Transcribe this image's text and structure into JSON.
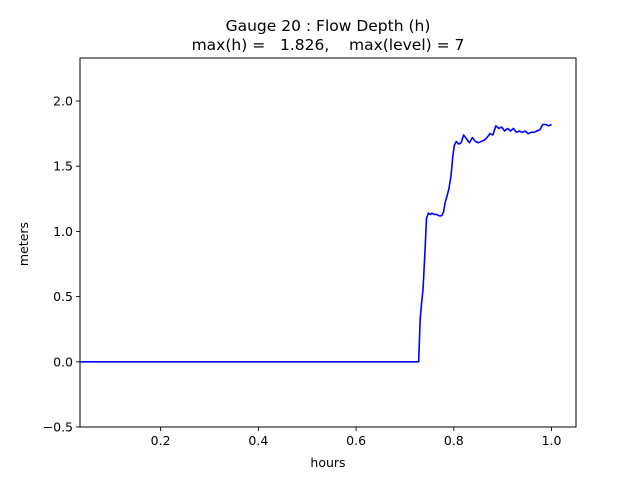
{
  "chart_data": {
    "type": "line",
    "title_line1": "Gauge 20 : Flow Depth (h)",
    "title_line2": "max(h) =   1.826,    max(level) = 7",
    "xlabel": "hours",
    "ylabel": "meters",
    "xlim": [
      0.035,
      1.05
    ],
    "ylim": [
      -0.5,
      2.33
    ],
    "grid": false,
    "x_ticks": [
      0.2,
      0.4,
      0.6,
      0.8,
      1.0
    ],
    "x_tick_labels": [
      "0.2",
      "0.4",
      "0.6",
      "0.8",
      "1.0"
    ],
    "y_ticks": [
      -0.5,
      0.0,
      0.5,
      1.0,
      1.5,
      2.0
    ],
    "y_tick_labels": [
      "−0.5",
      "0.0",
      "0.5",
      "1.0",
      "1.5",
      "2.0"
    ],
    "series": [
      {
        "color": "#0000ff",
        "x": [
          0.035,
          0.1,
          0.2,
          0.3,
          0.4,
          0.5,
          0.6,
          0.7,
          0.728,
          0.731,
          0.734,
          0.737,
          0.741,
          0.744,
          0.748,
          0.752,
          0.755,
          0.76,
          0.765,
          0.77,
          0.775,
          0.779,
          0.782,
          0.786,
          0.79,
          0.794,
          0.798,
          0.801,
          0.805,
          0.81,
          0.815,
          0.82,
          0.826,
          0.832,
          0.838,
          0.844,
          0.85,
          0.856,
          0.862,
          0.868,
          0.874,
          0.88,
          0.886,
          0.892,
          0.898,
          0.904,
          0.91,
          0.916,
          0.922,
          0.928,
          0.934,
          0.94,
          0.946,
          0.952,
          0.958,
          0.964,
          0.97,
          0.976,
          0.982,
          0.988,
          0.994,
          1.0
        ],
        "y": [
          0.0,
          0.0,
          0.0,
          0.0,
          0.0,
          0.0,
          0.0,
          0.0,
          0.0,
          0.32,
          0.45,
          0.56,
          0.85,
          1.1,
          1.14,
          1.13,
          1.14,
          1.13,
          1.13,
          1.12,
          1.12,
          1.15,
          1.22,
          1.27,
          1.33,
          1.42,
          1.58,
          1.66,
          1.69,
          1.67,
          1.68,
          1.74,
          1.71,
          1.68,
          1.72,
          1.69,
          1.68,
          1.69,
          1.7,
          1.72,
          1.75,
          1.74,
          1.81,
          1.79,
          1.8,
          1.77,
          1.79,
          1.77,
          1.79,
          1.76,
          1.77,
          1.76,
          1.77,
          1.75,
          1.76,
          1.76,
          1.77,
          1.78,
          1.82,
          1.82,
          1.81,
          1.82
        ]
      }
    ]
  }
}
